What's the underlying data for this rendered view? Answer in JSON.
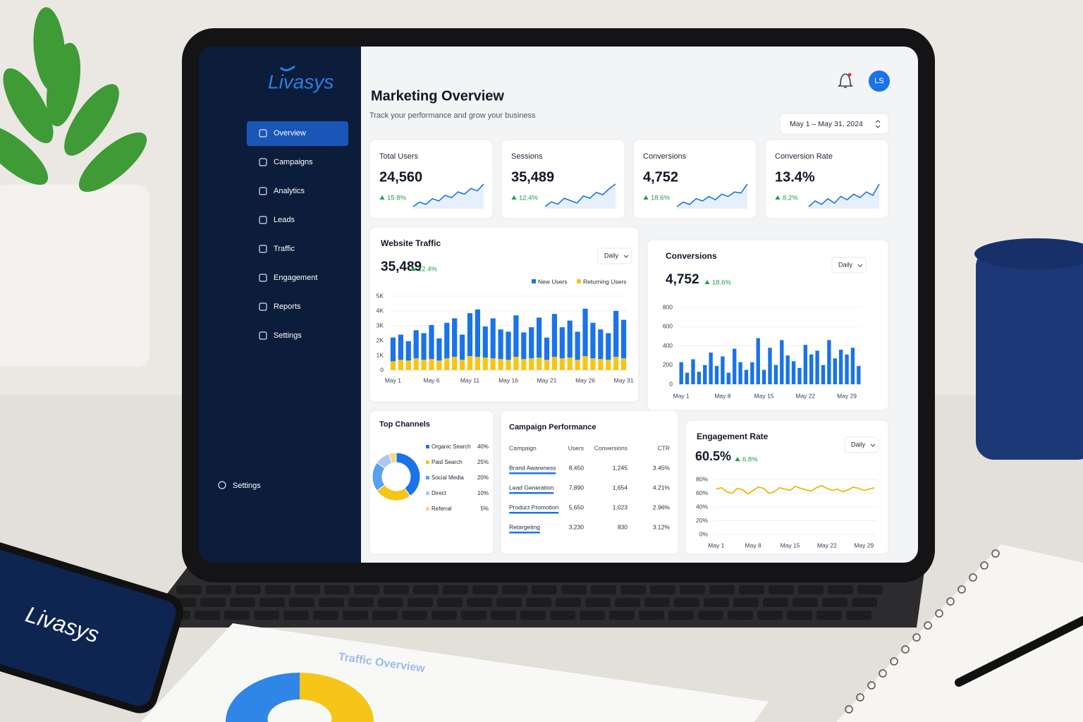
{
  "brand": {
    "logo": "Livasys"
  },
  "sidebar": {
    "items": [
      "Overview",
      "Campaigns",
      "Analytics",
      "Leads",
      "Traffic",
      "Engagement",
      "Reports",
      "Settings"
    ],
    "active": 0,
    "footer": "Settings"
  },
  "header": {
    "title": "Marketing Overview",
    "subtitle": "Track your performance and grow your business",
    "date_range": "May 1 – May 31, 2024",
    "avatar": "LS"
  },
  "kpis": [
    {
      "label": "Total Users",
      "value": "24,560",
      "change": "15.8%",
      "sparkline": [
        20,
        24,
        22,
        27,
        25,
        30,
        28,
        33,
        31,
        36,
        34,
        40
      ]
    },
    {
      "label": "Sessions",
      "value": "35,489",
      "change": "12.4%",
      "sparkline": [
        18,
        22,
        20,
        25,
        23,
        21,
        27,
        25,
        30,
        28,
        33,
        37
      ]
    },
    {
      "label": "Conversions",
      "value": "4,752",
      "change": "18.6%",
      "sparkline": [
        15,
        19,
        17,
        22,
        20,
        24,
        21,
        26,
        24,
        28,
        27,
        35
      ]
    },
    {
      "label": "Conversion Rate",
      "value": "13.4%",
      "change": "8.2%",
      "sparkline": [
        16,
        21,
        18,
        23,
        19,
        25,
        22,
        27,
        24,
        29,
        26,
        36
      ]
    }
  ],
  "traffic": {
    "title": "Website Traffic",
    "value": "35,489",
    "change": "12.4%",
    "period": "Daily",
    "categories": [
      "May 1",
      null,
      null,
      null,
      null,
      "May 6",
      null,
      null,
      null,
      null,
      "May 11",
      null,
      null,
      null,
      null,
      "May 16",
      null,
      null,
      null,
      null,
      "May 21",
      null,
      null,
      null,
      null,
      "May 26",
      null,
      null,
      null,
      null,
      "May 31"
    ],
    "series": [
      {
        "name": "New Users",
        "color": "#1a73e8",
        "values": [
          1600,
          1700,
          1300,
          1900,
          1800,
          2300,
          1500,
          2400,
          2600,
          1700,
          2900,
          3200,
          2100,
          2700,
          2000,
          1900,
          2800,
          1800,
          2100,
          2700,
          1500,
          2900,
          2100,
          2500,
          1900,
          3200,
          2400,
          2000,
          1800,
          3100,
          2600
        ]
      },
      {
        "name": "Returning Users",
        "color": "#f5c518",
        "values": [
          600,
          700,
          650,
          800,
          700,
          750,
          650,
          800,
          900,
          700,
          950,
          900,
          850,
          800,
          750,
          700,
          900,
          750,
          800,
          850,
          700,
          900,
          800,
          850,
          700,
          950,
          800,
          750,
          700,
          900,
          800
        ]
      }
    ],
    "ylim": [
      0,
      5000
    ],
    "yticks": [
      0,
      {
        "value": 1000,
        "label": "1K"
      },
      {
        "value": 2000,
        "label": "2K"
      },
      {
        "value": 3000,
        "label": "3K"
      },
      {
        "value": 4000,
        "label": "4K"
      },
      {
        "value": 5000,
        "label": "5K"
      }
    ]
  },
  "conversions_chart": {
    "title": "Conversions",
    "value": "4,752",
    "change": "18.6%",
    "period": "Daily",
    "categories": [
      "May 1",
      null,
      null,
      null,
      null,
      null,
      null,
      "May 8",
      null,
      null,
      null,
      null,
      null,
      null,
      "May 15",
      null,
      null,
      null,
      null,
      null,
      null,
      "May 22",
      null,
      null,
      null,
      null,
      null,
      null,
      "May 29",
      null,
      null
    ],
    "values": [
      230,
      120,
      260,
      130,
      200,
      330,
      190,
      290,
      120,
      370,
      230,
      150,
      230,
      480,
      150,
      380,
      200,
      460,
      300,
      240,
      170,
      410,
      310,
      350,
      200,
      460,
      270,
      360,
      310,
      380,
      190
    ],
    "color": "#1a73e8",
    "ylim": [
      0,
      800
    ],
    "yticks": [
      0,
      200,
      400,
      600,
      800
    ]
  },
  "channels": {
    "title": "Top Channels",
    "items": [
      {
        "name": "Organic Search",
        "value": 40,
        "value_label": "40%",
        "color": "#1a73e8"
      },
      {
        "name": "Paid Search",
        "value": 25,
        "value_label": "25%",
        "color": "#f5c518"
      },
      {
        "name": "Social Media",
        "value": 20,
        "value_label": "20%",
        "color": "#5aa0ef"
      },
      {
        "name": "Direct",
        "value": 10,
        "value_label": "10%",
        "color": "#a9c9f2"
      },
      {
        "name": "Referral",
        "value": 5,
        "value_label": "5%",
        "color": "#f7d97a"
      }
    ]
  },
  "campaigns": {
    "title": "Campaign Performance",
    "columns": [
      "Campaign",
      "Users",
      "Conversions",
      "CTR"
    ],
    "rows": [
      [
        "Brand Awareness",
        "8,450",
        "1,245",
        "3.45%"
      ],
      [
        "Lead Generation",
        "7,890",
        "1,654",
        "4.21%"
      ],
      [
        "Product Promotion",
        "5,650",
        "1,023",
        "2.96%"
      ],
      [
        "Retargeting",
        "3,230",
        "830",
        "3.12%"
      ]
    ]
  },
  "engagement": {
    "title": "Engagement Rate",
    "value": "60.5%",
    "change": "6.8%",
    "period": "Daily",
    "categories": [
      "May 1",
      null,
      null,
      null,
      null,
      null,
      null,
      "May 8",
      null,
      null,
      null,
      null,
      null,
      null,
      "May 15",
      null,
      null,
      null,
      null,
      null,
      null,
      "May 22",
      null,
      null,
      null,
      null,
      null,
      null,
      "May 29",
      null,
      null
    ],
    "values": [
      66,
      68,
      62,
      60,
      67,
      65,
      59,
      64,
      69,
      67,
      60,
      62,
      68,
      66,
      64,
      70,
      67,
      65,
      63,
      68,
      71,
      67,
      64,
      66,
      62,
      65,
      69,
      67,
      64,
      66,
      68
    ],
    "color": "#f2b705",
    "ylim": [
      0,
      80
    ],
    "yticks": [
      {
        "value": 0,
        "label": "0%"
      },
      {
        "value": 20,
        "label": "20%"
      },
      {
        "value": 40,
        "label": "40%"
      },
      {
        "value": 60,
        "label": "60%"
      },
      {
        "value": 80,
        "label": "80%"
      }
    ]
  },
  "scene": {
    "phone_logo": "Livasys",
    "paper_title": "Traffic Overview"
  }
}
